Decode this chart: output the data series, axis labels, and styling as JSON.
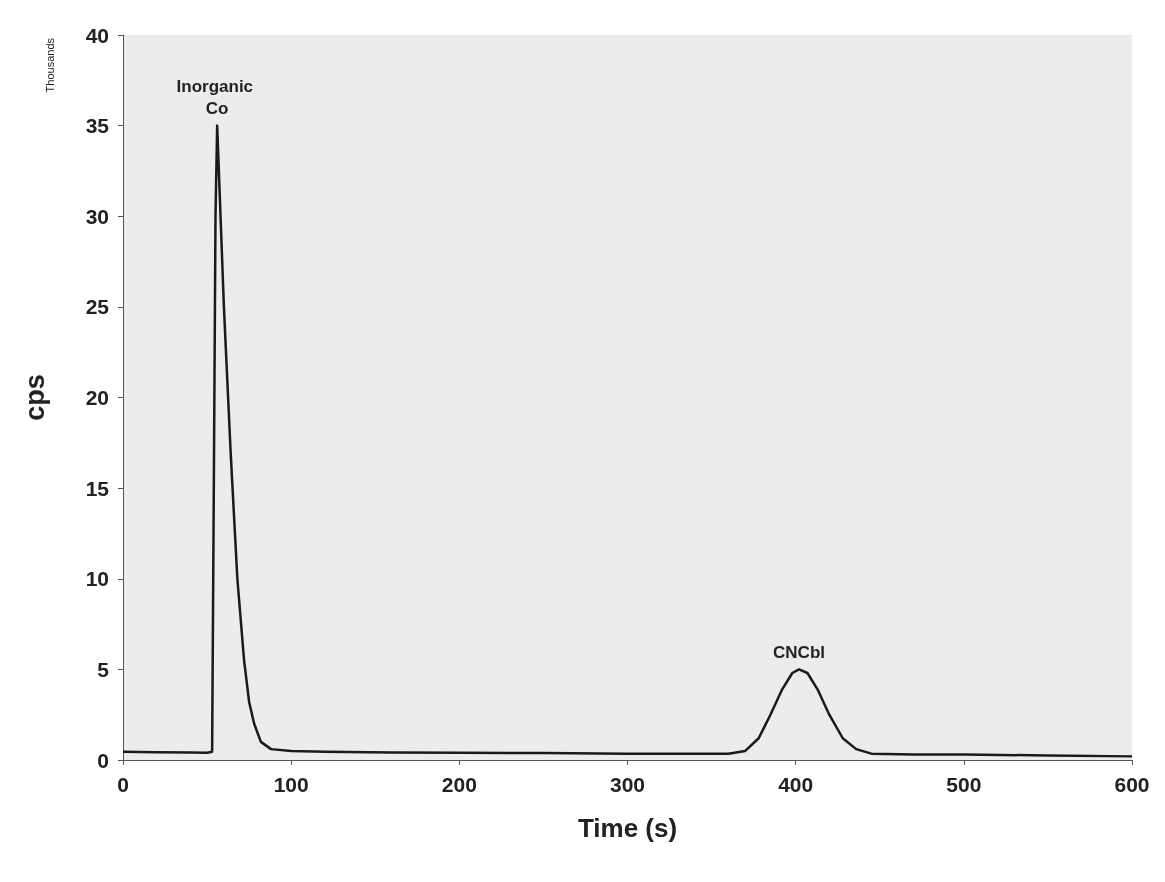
{
  "chart_data": {
    "type": "line",
    "xlabel": "Time (s)",
    "ylabel": "cps",
    "xlim": [
      0,
      600
    ],
    "xticks": [
      0,
      100,
      200,
      300,
      400,
      500,
      600
    ],
    "ylim": [
      0,
      40
    ],
    "yticks": [
      0,
      5,
      10,
      15,
      20,
      25,
      30,
      35,
      40
    ],
    "grid": false,
    "marker": "none",
    "line_style": "solid",
    "series": [
      {
        "color": "#1a1a1a",
        "x": [
          0,
          20,
          40,
          50,
          53,
          54,
          55,
          56,
          58,
          60,
          64,
          68,
          72,
          75,
          78,
          82,
          88,
          100,
          120,
          160,
          200,
          250,
          300,
          340,
          360,
          370,
          378,
          385,
          392,
          398,
          402,
          407,
          413,
          420,
          428,
          436,
          445,
          470,
          500,
          550,
          600
        ],
        "values": [
          0.45,
          0.43,
          0.42,
          0.4,
          0.45,
          15,
          30,
          35,
          30,
          25,
          17,
          10,
          5.5,
          3.2,
          2,
          1,
          0.6,
          0.5,
          0.45,
          0.42,
          0.4,
          0.38,
          0.35,
          0.35,
          0.35,
          0.5,
          1.2,
          2.5,
          3.9,
          4.8,
          5,
          4.8,
          3.9,
          2.5,
          1.2,
          0.6,
          0.35,
          0.3,
          0.3,
          0.25,
          0.2
        ]
      }
    ],
    "annotations": [
      {
        "text": "Inorganic Co",
        "x": 56,
        "y": 35
      },
      {
        "text": "CNCbl",
        "x": 402,
        "y": 5
      },
      "Thousands"
    ]
  }
}
